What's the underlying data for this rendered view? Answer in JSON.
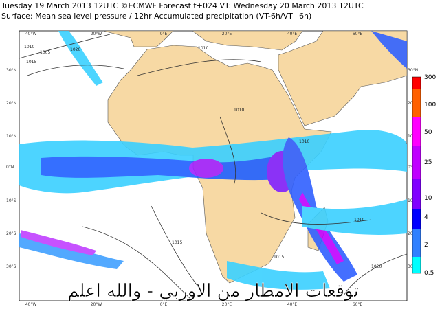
{
  "header": {
    "line1": "Tuesday 19 March 2013 12UTC ©ECMWF Forecast t+024 VT: Wednesday 20 March 2013 12UTC",
    "line2": "Surface: Mean sea level pressure / 12hr Accumulated precipitation (VT-6h/VT+6h)"
  },
  "map": {
    "lon_labels": [
      "40°W",
      "20°W",
      "0°E",
      "20°E",
      "40°E",
      "60°E"
    ],
    "lat_labels": [
      "30°N",
      "20°N",
      "10°N",
      "0°N",
      "10°S",
      "20°S",
      "30°S"
    ],
    "isobar_labels": [
      "1010",
      "1005",
      "1015",
      "1020",
      "1010",
      "1010",
      "1010",
      "1015",
      "1010",
      "1015",
      "1020"
    ]
  },
  "legend": {
    "labels": [
      "300",
      "100",
      "50",
      "25",
      "10",
      "4",
      "2",
      "0.5"
    ]
  },
  "watermark": "توقعات الامطار من الاوربي - والله اعلم"
}
